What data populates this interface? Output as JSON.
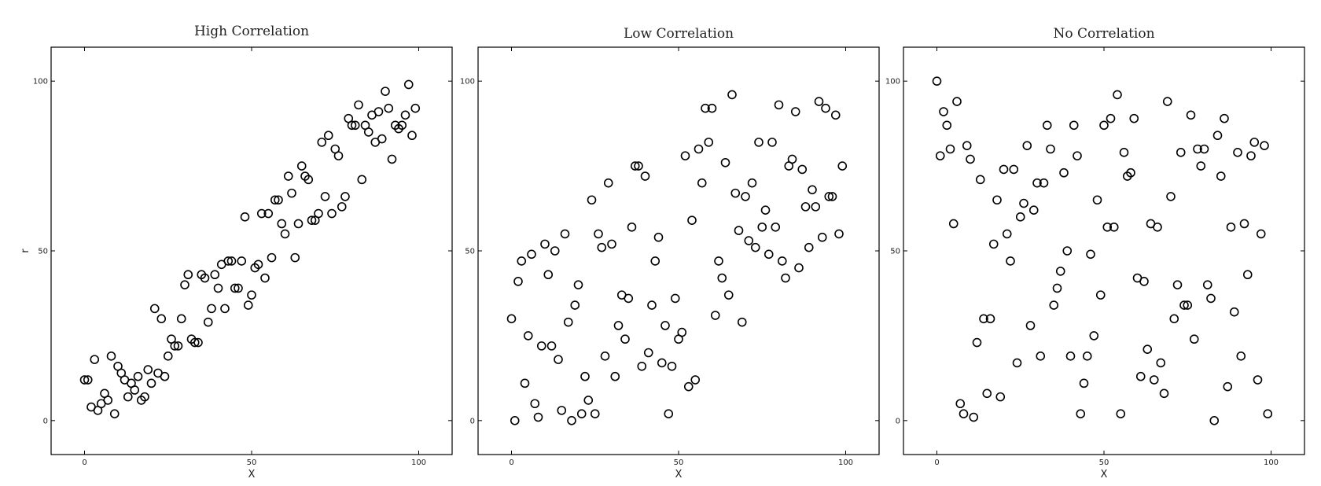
{
  "chart_data": [
    {
      "type": "scatter",
      "title": "High Correlation",
      "xlabel": "X",
      "ylabel": "r",
      "xlim": [
        -10,
        110
      ],
      "ylim": [
        -10,
        110
      ],
      "xticks": [
        0,
        50,
        100
      ],
      "yticks": [
        0,
        50,
        100
      ],
      "grid": false,
      "marker": "open-circle",
      "points": [
        [
          0,
          12
        ],
        [
          1,
          12
        ],
        [
          2,
          4
        ],
        [
          3,
          18
        ],
        [
          4,
          3
        ],
        [
          5,
          5
        ],
        [
          6,
          8
        ],
        [
          7,
          6
        ],
        [
          8,
          19
        ],
        [
          9,
          2
        ],
        [
          10,
          16
        ],
        [
          11,
          14
        ],
        [
          12,
          12
        ],
        [
          13,
          7
        ],
        [
          14,
          11
        ],
        [
          15,
          9
        ],
        [
          16,
          13
        ],
        [
          17,
          6
        ],
        [
          18,
          7
        ],
        [
          19,
          15
        ],
        [
          20,
          11
        ],
        [
          21,
          33
        ],
        [
          22,
          14
        ],
        [
          23,
          30
        ],
        [
          24,
          13
        ],
        [
          25,
          19
        ],
        [
          26,
          24
        ],
        [
          27,
          22
        ],
        [
          28,
          22
        ],
        [
          29,
          30
        ],
        [
          30,
          40
        ],
        [
          31,
          43
        ],
        [
          32,
          24
        ],
        [
          33,
          23
        ],
        [
          34,
          23
        ],
        [
          35,
          43
        ],
        [
          36,
          42
        ],
        [
          37,
          29
        ],
        [
          38,
          33
        ],
        [
          39,
          43
        ],
        [
          40,
          39
        ],
        [
          41,
          46
        ],
        [
          42,
          33
        ],
        [
          43,
          47
        ],
        [
          44,
          47
        ],
        [
          45,
          39
        ],
        [
          46,
          39
        ],
        [
          47,
          47
        ],
        [
          48,
          60
        ],
        [
          49,
          34
        ],
        [
          50,
          37
        ],
        [
          51,
          45
        ],
        [
          52,
          46
        ],
        [
          53,
          61
        ],
        [
          54,
          42
        ],
        [
          55,
          61
        ],
        [
          56,
          48
        ],
        [
          57,
          65
        ],
        [
          58,
          65
        ],
        [
          59,
          58
        ],
        [
          60,
          55
        ],
        [
          61,
          72
        ],
        [
          62,
          67
        ],
        [
          63,
          48
        ],
        [
          64,
          58
        ],
        [
          65,
          75
        ],
        [
          66,
          72
        ],
        [
          67,
          71
        ],
        [
          68,
          59
        ],
        [
          69,
          59
        ],
        [
          70,
          61
        ],
        [
          71,
          82
        ],
        [
          72,
          66
        ],
        [
          73,
          84
        ],
        [
          74,
          61
        ],
        [
          75,
          80
        ],
        [
          76,
          78
        ],
        [
          77,
          63
        ],
        [
          78,
          66
        ],
        [
          79,
          89
        ],
        [
          80,
          87
        ],
        [
          81,
          87
        ],
        [
          82,
          93
        ],
        [
          83,
          71
        ],
        [
          84,
          87
        ],
        [
          85,
          85
        ],
        [
          86,
          90
        ],
        [
          87,
          82
        ],
        [
          88,
          91
        ],
        [
          89,
          83
        ],
        [
          90,
          97
        ],
        [
          91,
          92
        ],
        [
          92,
          77
        ],
        [
          93,
          87
        ],
        [
          94,
          86
        ],
        [
          95,
          87
        ],
        [
          96,
          90
        ],
        [
          97,
          99
        ],
        [
          98,
          84
        ],
        [
          99,
          92
        ]
      ]
    },
    {
      "type": "scatter",
      "title": "Low Correlation",
      "xlabel": "X",
      "ylabel": "",
      "xlim": [
        -10,
        110
      ],
      "ylim": [
        -10,
        110
      ],
      "xticks": [
        0,
        50,
        100
      ],
      "yticks": [
        0,
        50,
        100
      ],
      "grid": false,
      "marker": "open-circle",
      "points": [
        [
          0,
          30
        ],
        [
          1,
          0
        ],
        [
          2,
          41
        ],
        [
          3,
          47
        ],
        [
          4,
          11
        ],
        [
          5,
          25
        ],
        [
          6,
          49
        ],
        [
          7,
          5
        ],
        [
          8,
          1
        ],
        [
          9,
          22
        ],
        [
          10,
          52
        ],
        [
          11,
          43
        ],
        [
          12,
          22
        ],
        [
          13,
          50
        ],
        [
          14,
          18
        ],
        [
          15,
          3
        ],
        [
          16,
          55
        ],
        [
          17,
          29
        ],
        [
          18,
          0
        ],
        [
          19,
          34
        ],
        [
          20,
          40
        ],
        [
          21,
          2
        ],
        [
          22,
          13
        ],
        [
          23,
          6
        ],
        [
          24,
          65
        ],
        [
          25,
          2
        ],
        [
          26,
          55
        ],
        [
          27,
          51
        ],
        [
          28,
          19
        ],
        [
          29,
          70
        ],
        [
          30,
          52
        ],
        [
          31,
          13
        ],
        [
          32,
          28
        ],
        [
          33,
          37
        ],
        [
          34,
          24
        ],
        [
          35,
          36
        ],
        [
          36,
          57
        ],
        [
          37,
          75
        ],
        [
          38,
          75
        ],
        [
          39,
          16
        ],
        [
          40,
          72
        ],
        [
          41,
          20
        ],
        [
          42,
          34
        ],
        [
          43,
          47
        ],
        [
          44,
          54
        ],
        [
          45,
          17
        ],
        [
          46,
          28
        ],
        [
          47,
          2
        ],
        [
          48,
          16
        ],
        [
          49,
          36
        ],
        [
          50,
          24
        ],
        [
          51,
          26
        ],
        [
          52,
          78
        ],
        [
          53,
          10
        ],
        [
          54,
          59
        ],
        [
          55,
          12
        ],
        [
          56,
          80
        ],
        [
          57,
          70
        ],
        [
          58,
          92
        ],
        [
          59,
          82
        ],
        [
          60,
          92
        ],
        [
          61,
          31
        ],
        [
          62,
          47
        ],
        [
          63,
          42
        ],
        [
          64,
          76
        ],
        [
          65,
          37
        ],
        [
          66,
          96
        ],
        [
          67,
          67
        ],
        [
          68,
          56
        ],
        [
          69,
          29
        ],
        [
          70,
          66
        ],
        [
          71,
          53
        ],
        [
          72,
          70
        ],
        [
          73,
          51
        ],
        [
          74,
          82
        ],
        [
          75,
          57
        ],
        [
          76,
          62
        ],
        [
          77,
          49
        ],
        [
          78,
          82
        ],
        [
          79,
          57
        ],
        [
          80,
          93
        ],
        [
          81,
          47
        ],
        [
          82,
          42
        ],
        [
          83,
          75
        ],
        [
          84,
          77
        ],
        [
          85,
          91
        ],
        [
          86,
          45
        ],
        [
          87,
          74
        ],
        [
          88,
          63
        ],
        [
          89,
          51
        ],
        [
          90,
          68
        ],
        [
          91,
          63
        ],
        [
          92,
          94
        ],
        [
          93,
          54
        ],
        [
          94,
          92
        ],
        [
          95,
          66
        ],
        [
          96,
          66
        ],
        [
          97,
          90
        ],
        [
          98,
          55
        ],
        [
          99,
          75
        ]
      ]
    },
    {
      "type": "scatter",
      "title": "No Correlation",
      "xlabel": "X",
      "ylabel": "",
      "xlim": [
        -10,
        110
      ],
      "ylim": [
        -10,
        110
      ],
      "xticks": [
        0,
        50,
        100
      ],
      "yticks": [
        0,
        50,
        100
      ],
      "grid": false,
      "marker": "open-circle",
      "points": [
        [
          0,
          100
        ],
        [
          1,
          78
        ],
        [
          2,
          91
        ],
        [
          3,
          87
        ],
        [
          4,
          80
        ],
        [
          5,
          58
        ],
        [
          6,
          94
        ],
        [
          7,
          5
        ],
        [
          8,
          2
        ],
        [
          9,
          81
        ],
        [
          10,
          77
        ],
        [
          11,
          1
        ],
        [
          12,
          23
        ],
        [
          13,
          71
        ],
        [
          14,
          30
        ],
        [
          15,
          8
        ],
        [
          16,
          30
        ],
        [
          17,
          52
        ],
        [
          18,
          65
        ],
        [
          19,
          7
        ],
        [
          20,
          74
        ],
        [
          21,
          55
        ],
        [
          22,
          47
        ],
        [
          23,
          74
        ],
        [
          24,
          17
        ],
        [
          25,
          60
        ],
        [
          26,
          64
        ],
        [
          27,
          81
        ],
        [
          28,
          28
        ],
        [
          29,
          62
        ],
        [
          30,
          70
        ],
        [
          31,
          19
        ],
        [
          32,
          70
        ],
        [
          33,
          87
        ],
        [
          34,
          80
        ],
        [
          35,
          34
        ],
        [
          36,
          39
        ],
        [
          37,
          44
        ],
        [
          38,
          73
        ],
        [
          39,
          50
        ],
        [
          40,
          19
        ],
        [
          41,
          87
        ],
        [
          42,
          78
        ],
        [
          43,
          2
        ],
        [
          44,
          11
        ],
        [
          45,
          19
        ],
        [
          46,
          49
        ],
        [
          47,
          25
        ],
        [
          48,
          65
        ],
        [
          49,
          37
        ],
        [
          50,
          87
        ],
        [
          51,
          57
        ],
        [
          52,
          89
        ],
        [
          53,
          57
        ],
        [
          54,
          96
        ],
        [
          55,
          2
        ],
        [
          56,
          79
        ],
        [
          57,
          72
        ],
        [
          58,
          73
        ],
        [
          59,
          89
        ],
        [
          60,
          42
        ],
        [
          61,
          13
        ],
        [
          62,
          41
        ],
        [
          63,
          21
        ],
        [
          64,
          58
        ],
        [
          65,
          12
        ],
        [
          66,
          57
        ],
        [
          67,
          17
        ],
        [
          68,
          8
        ],
        [
          69,
          94
        ],
        [
          70,
          66
        ],
        [
          71,
          30
        ],
        [
          72,
          40
        ],
        [
          73,
          79
        ],
        [
          74,
          34
        ],
        [
          75,
          34
        ],
        [
          76,
          90
        ],
        [
          77,
          24
        ],
        [
          78,
          80
        ],
        [
          79,
          75
        ],
        [
          80,
          80
        ],
        [
          81,
          40
        ],
        [
          82,
          36
        ],
        [
          83,
          0
        ],
        [
          84,
          84
        ],
        [
          85,
          72
        ],
        [
          86,
          89
        ],
        [
          87,
          10
        ],
        [
          88,
          57
        ],
        [
          89,
          32
        ],
        [
          90,
          79
        ],
        [
          91,
          19
        ],
        [
          92,
          58
        ],
        [
          93,
          43
        ],
        [
          94,
          78
        ],
        [
          95,
          82
        ],
        [
          96,
          12
        ],
        [
          97,
          55
        ],
        [
          98,
          81
        ],
        [
          99,
          2
        ]
      ]
    }
  ]
}
